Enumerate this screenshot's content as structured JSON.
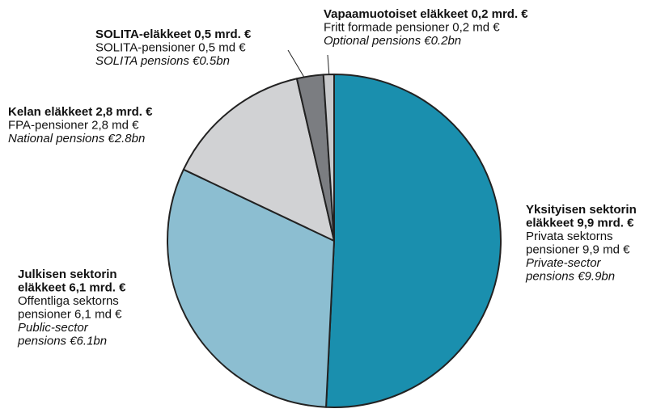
{
  "chart_data": {
    "type": "pie",
    "categories": [
      {
        "fi": [
          "Yksityisen sektorin",
          "eläkkeet 9,9 mrd. €"
        ],
        "sv": [
          "Privata sektorns",
          "pensioner 9,9 md €"
        ],
        "en": [
          "Private-sector",
          "pensions €9.9bn"
        ]
      },
      {
        "fi": [
          "Julkisen sektorin",
          "eläkkeet 6,1 mrd. €"
        ],
        "sv": [
          "Offentliga sektorns",
          "pensioner 6,1 md €"
        ],
        "en": [
          "Public-sector",
          "pensions €6.1bn"
        ]
      },
      {
        "fi": [
          "Kelan eläkkeet 2,8 mrd. €"
        ],
        "sv": [
          "FPA-pensioner 2,8 md €"
        ],
        "en": [
          "National pensions €2.8bn"
        ]
      },
      {
        "fi": [
          "SOLITA-eläkkeet 0,5 mrd. €"
        ],
        "sv": [
          "SOLITA-pensioner 0,5 md €"
        ],
        "en": [
          "SOLITA pensions €0.5bn"
        ]
      },
      {
        "fi": [
          "Vapaamuotoiset eläkkeet 0,2 mrd. €"
        ],
        "sv": [
          "Fritt formade pensioner 0,2 md €"
        ],
        "en": [
          "Optional pensions €0.2bn"
        ]
      }
    ],
    "values": [
      9.9,
      6.1,
      2.8,
      0.5,
      0.2
    ],
    "colors": [
      "#1a8fae",
      "#8cbed1",
      "#d1d2d4",
      "#7b7d81",
      "#c9cacc"
    ]
  }
}
